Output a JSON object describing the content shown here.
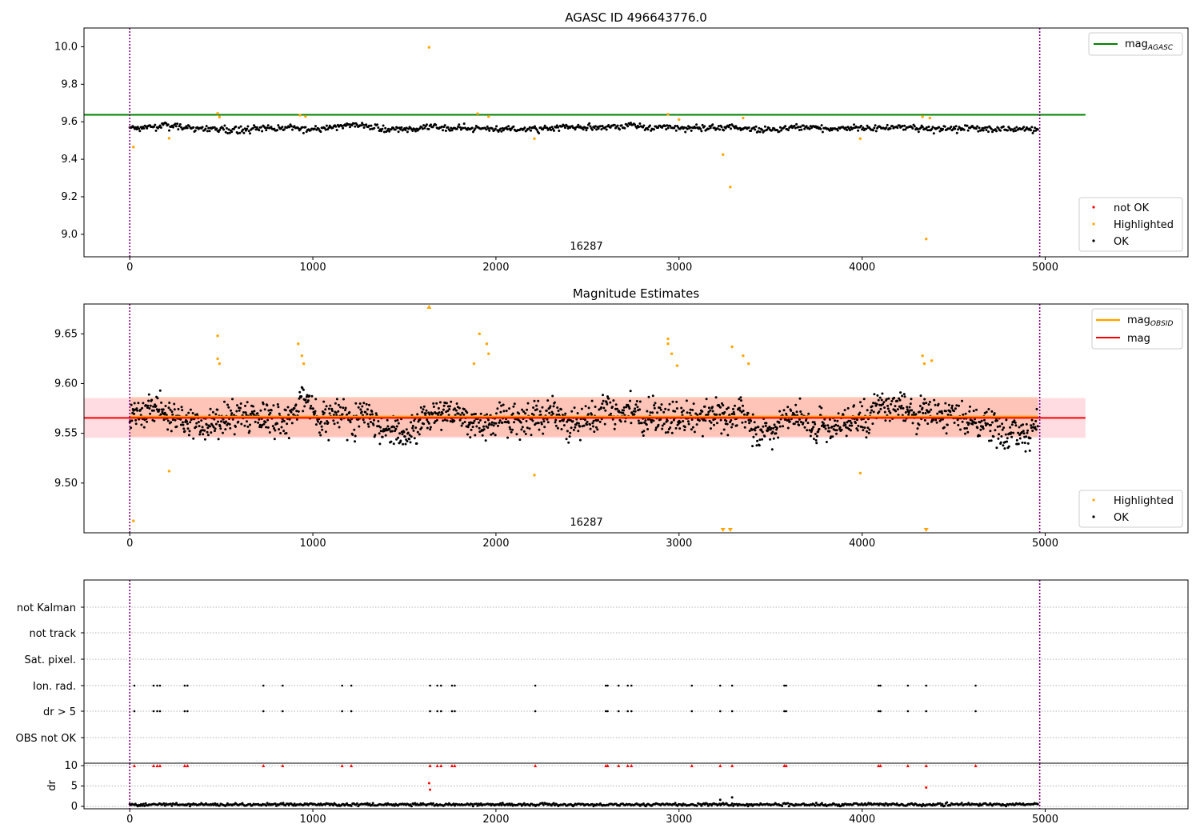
{
  "colors": {
    "ok": "#000000",
    "highlighted": "#ffa500",
    "not_ok": "#ff0000",
    "mag_agasc": "#008000",
    "mag_obsid": "#ffa500",
    "mag": "#ff0000",
    "band_outer": "#ffc0cb",
    "band_inner": "#ffa07a",
    "obs_boundary": "#800080"
  },
  "chart_data": [
    {
      "type": "scatter",
      "title": "AGASC ID 496643776.0",
      "annotation": "16287",
      "xlim": [
        -250,
        5780
      ],
      "ylim": [
        8.88,
        10.1
      ],
      "xticks": [
        "0",
        "1000",
        "2000",
        "3000",
        "4000",
        "5000"
      ],
      "yticks": [
        "9.0",
        "9.2",
        "9.4",
        "9.6",
        "9.8",
        "10.0"
      ],
      "obs_boundaries": [
        0,
        4970
      ],
      "lines": [
        {
          "name": "mag_AGASC",
          "y": 9.637,
          "x_range": [
            -250,
            5220
          ]
        }
      ],
      "legend_upper": [
        "mag_AGASC"
      ],
      "legend_lower": [
        "not OK",
        "Highlighted",
        "OK"
      ],
      "ok_series": {
        "name": "OK",
        "x_range": [
          0,
          4960
        ],
        "mean": 9.566,
        "spread": 0.02
      },
      "highlighted_points": [
        [
          20,
          9.465
        ],
        [
          215,
          9.512
        ],
        [
          480,
          9.645
        ],
        [
          490,
          9.625
        ],
        [
          930,
          9.635
        ],
        [
          960,
          9.628
        ],
        [
          1635,
          9.997
        ],
        [
          1900,
          9.643
        ],
        [
          1960,
          9.628
        ],
        [
          2210,
          9.51
        ],
        [
          2940,
          9.64
        ],
        [
          3000,
          9.612
        ],
        [
          3240,
          9.425
        ],
        [
          3280,
          9.252
        ],
        [
          3350,
          9.62
        ],
        [
          3990,
          9.51
        ],
        [
          4330,
          9.627
        ],
        [
          4350,
          8.975
        ],
        [
          4370,
          9.62
        ]
      ]
    },
    {
      "type": "scatter",
      "title": "Magnitude Estimates",
      "annotation": "16287",
      "xlim": [
        -250,
        5780
      ],
      "ylim": [
        9.45,
        9.68
      ],
      "xticks": [
        "0",
        "1000",
        "2000",
        "3000",
        "4000",
        "5000"
      ],
      "yticks": [
        "9.50",
        "9.55",
        "9.60",
        "9.65"
      ],
      "obs_boundaries": [
        0,
        4970
      ],
      "lines": [
        {
          "name": "mag_OBSID",
          "y": 9.5667,
          "x_range": [
            0,
            4960
          ]
        },
        {
          "name": "mag",
          "y": 9.5655,
          "x_range": [
            -250,
            5220
          ]
        }
      ],
      "bands": [
        {
          "y_range": [
            9.5455,
            9.5855
          ],
          "x_range": [
            -250,
            5220
          ]
        },
        {
          "y_range": [
            9.5467,
            9.5867
          ],
          "x_range": [
            0,
            4960
          ]
        }
      ],
      "legend_upper": [
        "mag_OBSID",
        "mag"
      ],
      "legend_lower": [
        "Highlighted",
        "OK"
      ],
      "ok_series": {
        "name": "OK",
        "x_range": [
          0,
          4960
        ],
        "mean": 9.566,
        "spread": 0.018
      },
      "highlighted_points": [
        [
          480,
          9.648
        ],
        [
          480,
          9.625
        ],
        [
          490,
          9.62
        ],
        [
          920,
          9.64
        ],
        [
          940,
          9.628
        ],
        [
          950,
          9.62
        ],
        [
          1910,
          9.65
        ],
        [
          1950,
          9.64
        ],
        [
          1960,
          9.63
        ],
        [
          1880,
          9.62
        ],
        [
          2940,
          9.645
        ],
        [
          2940,
          9.64
        ],
        [
          2960,
          9.63
        ],
        [
          2990,
          9.618
        ],
        [
          215,
          9.512
        ],
        [
          2210,
          9.508
        ],
        [
          3990,
          9.51
        ],
        [
          3290,
          9.637
        ],
        [
          3350,
          9.628
        ],
        [
          3380,
          9.62
        ],
        [
          4330,
          9.628
        ],
        [
          4340,
          9.62
        ],
        [
          4380,
          9.623
        ],
        [
          20,
          9.462
        ]
      ],
      "clipped_points": [
        [
          1635,
          "up"
        ],
        [
          3240,
          "down"
        ],
        [
          3280,
          "down"
        ],
        [
          4350,
          "down"
        ]
      ]
    },
    {
      "type": "scatter",
      "title": "",
      "xlim": [
        -250,
        5780
      ],
      "xticks": [
        "0",
        "1000",
        "2000",
        "3000",
        "4000",
        "5000"
      ],
      "flag_rows": [
        "not Kalman",
        "not track",
        "Sat. pixel.",
        "Ion. rad.",
        "dr > 5",
        "OBS not OK"
      ],
      "flag_events": {
        "Ion. rad.": [
          25,
          130,
          150,
          165,
          300,
          315,
          730,
          835,
          1160,
          1210,
          1640,
          1680,
          1700,
          1760,
          1775,
          2215,
          2600,
          2610,
          2670,
          2720,
          2740,
          3070,
          3225,
          3290,
          3575,
          3585,
          4090,
          4100,
          4250,
          4350,
          4620
        ],
        "dr > 5": [
          25,
          130,
          150,
          165,
          300,
          315,
          730,
          835,
          1160,
          1210,
          1640,
          1680,
          1700,
          1760,
          1775,
          2215,
          2600,
          2610,
          2670,
          2720,
          2740,
          3070,
          3225,
          3290,
          3575,
          3585,
          4090,
          4100,
          4250,
          4350,
          4620
        ]
      },
      "obs_boundaries": [
        0,
        4970
      ]
    },
    {
      "type": "scatter",
      "ylabel": "dr",
      "xlim": [
        -250,
        5780
      ],
      "ylim": [
        -0.6,
        10.6
      ],
      "xticks": [
        "0",
        "1000",
        "2000",
        "3000",
        "4000",
        "5000"
      ],
      "yticks": [
        "0",
        "5",
        "10"
      ],
      "obs_boundaries": [
        0,
        4970
      ],
      "ok_series": {
        "name": "OK",
        "x_range": [
          0,
          4960
        ],
        "mean": 0.45,
        "spread": 0.25
      },
      "high_dr_points": [
        [
          1635,
          5.7
        ],
        [
          1640,
          4.1
        ],
        [
          3225,
          1.6
        ],
        [
          3290,
          2.2
        ],
        [
          4350,
          4.6
        ]
      ],
      "capped_points_y": 10,
      "capped_points_x": [
        25,
        130,
        150,
        165,
        300,
        315,
        730,
        835,
        1160,
        1210,
        1640,
        1680,
        1700,
        1760,
        1775,
        2215,
        2600,
        2610,
        2670,
        2720,
        2740,
        3070,
        3225,
        3290,
        3575,
        3585,
        4090,
        4100,
        4250,
        4350,
        4620
      ]
    }
  ]
}
